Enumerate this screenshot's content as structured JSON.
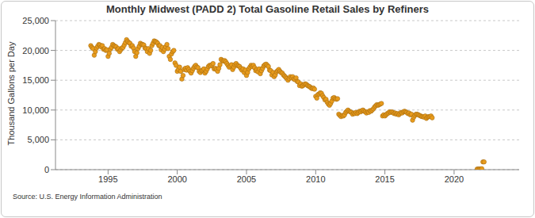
{
  "chart_data": {
    "type": "scatter",
    "title": "Monthly Midwest (PADD 2) Total Gasoline Retail Sales by Refiners",
    "y_label": "Thousand Gallons per Day",
    "source": "Source: U.S. Energy Information Administration",
    "color": "#e89b1c",
    "marker": "circle",
    "grid": true,
    "xlim": [
      1991.2,
      2024.7
    ],
    "xticks": [
      1995,
      2000,
      2005,
      2010,
      2015,
      2020
    ],
    "ylim": [
      0,
      25000
    ],
    "yticks": [
      0,
      {
        "value": 5000,
        "label": "5,000"
      },
      {
        "value": 10000,
        "label": "10,000"
      },
      {
        "value": 15000,
        "label": "15,000"
      },
      {
        "value": 20000,
        "label": "20,000"
      },
      {
        "value": 25000,
        "label": "25,000"
      }
    ],
    "x": [
      1993.75,
      1993.833,
      1993.917,
      1994,
      1994.083,
      1994.167,
      1994.25,
      1994.333,
      1994.417,
      1994.5,
      1994.583,
      1994.667,
      1994.75,
      1994.833,
      1994.917,
      1995,
      1995.083,
      1995.167,
      1995.25,
      1995.333,
      1995.417,
      1995.5,
      1995.583,
      1995.667,
      1995.75,
      1995.833,
      1995.917,
      1996,
      1996.083,
      1996.167,
      1996.25,
      1996.333,
      1996.417,
      1996.5,
      1996.583,
      1996.667,
      1996.75,
      1996.833,
      1996.917,
      1997,
      1997.083,
      1997.167,
      1997.25,
      1997.333,
      1997.417,
      1997.5,
      1997.583,
      1997.667,
      1997.75,
      1997.833,
      1997.917,
      1998,
      1998.083,
      1998.167,
      1998.25,
      1998.333,
      1998.417,
      1998.5,
      1998.583,
      1998.667,
      1998.75,
      1998.833,
      1998.917,
      1999,
      1999.083,
      1999.167,
      1999.25,
      1999.333,
      1999.417,
      1999.5,
      1999.583,
      1999.667,
      1999.75,
      1999.833,
      1999.917,
      2000,
      2000.083,
      2000.167,
      2000.25,
      2000.333,
      2000.417,
      2000.5,
      2000.583,
      2000.667,
      2000.75,
      2000.833,
      2000.917,
      2001,
      2001.083,
      2001.167,
      2001.25,
      2001.333,
      2001.417,
      2001.5,
      2001.583,
      2001.667,
      2001.75,
      2001.833,
      2001.917,
      2002,
      2002.083,
      2002.167,
      2002.25,
      2002.333,
      2002.417,
      2002.5,
      2002.583,
      2002.667,
      2002.75,
      2002.833,
      2002.917,
      2003,
      2003.083,
      2003.167,
      2003.25,
      2003.333,
      2003.417,
      2003.5,
      2003.583,
      2003.667,
      2003.75,
      2003.833,
      2003.917,
      2004,
      2004.083,
      2004.167,
      2004.25,
      2004.333,
      2004.417,
      2004.5,
      2004.583,
      2004.667,
      2004.75,
      2004.833,
      2004.917,
      2005,
      2005.083,
      2005.167,
      2005.25,
      2005.333,
      2005.417,
      2005.5,
      2005.583,
      2005.667,
      2005.75,
      2005.833,
      2005.917,
      2006,
      2006.083,
      2006.167,
      2006.25,
      2006.333,
      2006.417,
      2006.5,
      2006.583,
      2006.667,
      2006.75,
      2006.833,
      2006.917,
      2007,
      2007.083,
      2007.167,
      2007.25,
      2007.333,
      2007.417,
      2007.5,
      2007.583,
      2007.667,
      2007.75,
      2007.833,
      2007.917,
      2008,
      2008.083,
      2008.167,
      2008.25,
      2008.333,
      2008.417,
      2008.5,
      2008.583,
      2008.667,
      2008.75,
      2008.833,
      2008.917,
      2009,
      2009.083,
      2009.167,
      2009.25,
      2009.333,
      2009.417,
      2009.5,
      2009.583,
      2009.667,
      2009.75,
      2009.833,
      2009.917,
      2010,
      2010.083,
      2010.167,
      2010.25,
      2010.333,
      2010.417,
      2010.5,
      2010.583,
      2010.667,
      2010.75,
      2010.833,
      2010.917,
      2011,
      2011.083,
      2011.167,
      2011.25,
      2011.333,
      2011.417,
      2011.5,
      2011.583,
      2011.667,
      2011.75,
      2011.833,
      2011.917,
      2012,
      2012.083,
      2012.167,
      2012.25,
      2012.333,
      2012.417,
      2012.5,
      2012.583,
      2012.667,
      2012.75,
      2012.833,
      2012.917,
      2013,
      2013.083,
      2013.167,
      2013.25,
      2013.333,
      2013.417,
      2013.5,
      2013.583,
      2013.667,
      2013.75,
      2013.833,
      2013.917,
      2014,
      2014.083,
      2014.167,
      2014.25,
      2014.333,
      2014.417,
      2014.5,
      2014.583,
      2014.667,
      2014.75,
      2014.833,
      2014.917,
      2015,
      2015.083,
      2015.167,
      2015.25,
      2015.333,
      2015.417,
      2015.5,
      2015.583,
      2015.667,
      2015.75,
      2015.833,
      2015.917,
      2016,
      2016.083,
      2016.167,
      2016.25,
      2016.333,
      2016.417,
      2016.5,
      2016.583,
      2016.667,
      2016.75,
      2016.833,
      2016.917,
      2017,
      2017.083,
      2017.167,
      2017.25,
      2017.333,
      2017.417,
      2017.5,
      2017.583,
      2017.667,
      2017.75,
      2017.833,
      2017.917,
      2018,
      2018.083,
      2018.167,
      2018.25,
      2018.333,
      2018.417,
      2021.667,
      2021.75,
      2021.833,
      2021.917,
      2022,
      2022.083,
      2022.167
    ],
    "values": [
      20800,
      20500,
      20300,
      19200,
      19800,
      20400,
      20700,
      21000,
      20900,
      20600,
      20800,
      20200,
      20300,
      20000,
      20100,
      19000,
      19500,
      20200,
      20500,
      21000,
      20800,
      20700,
      20600,
      20200,
      20300,
      19800,
      20100,
      20400,
      20500,
      20900,
      21300,
      21800,
      21500,
      21300,
      21200,
      20700,
      20800,
      20400,
      19800,
      19000,
      19600,
      20300,
      20700,
      21200,
      21000,
      21000,
      20900,
      20400,
      20300,
      19800,
      20300,
      19500,
      20000,
      20800,
      21200,
      21600,
      21500,
      21400,
      21200,
      20800,
      20800,
      20100,
      20500,
      19800,
      20200,
      20600,
      21000,
      20300,
      19000,
      18500,
      19400,
      19800,
      20000,
      17900,
      17500,
      16500,
      16800,
      17200,
      16500,
      15200,
      15800,
      16800,
      17000,
      16700,
      17100,
      16800,
      16500,
      16200,
      16600,
      17000,
      17300,
      17500,
      17200,
      17100,
      16500,
      16300,
      16600,
      16700,
      16900,
      16200,
      16500,
      16900,
      17300,
      17500,
      17400,
      17600,
      17800,
      16900,
      17000,
      16800,
      16500,
      17000,
      17600,
      18500,
      18300,
      18200,
      18300,
      18100,
      17800,
      17500,
      17200,
      17400,
      17600,
      16800,
      17200,
      17600,
      17800,
      17500,
      17400,
      17300,
      17000,
      16700,
      16900,
      16300,
      16700,
      15800,
      16300,
      16900,
      17200,
      17500,
      17300,
      17500,
      17100,
      16600,
      16800,
      16400,
      16900,
      16100,
      16600,
      17000,
      17400,
      17600,
      17700,
      17500,
      17300,
      16700,
      16600,
      15900,
      16300,
      15600,
      15900,
      16400,
      16600,
      16800,
      16500,
      16300,
      16200,
      15900,
      15700,
      15500,
      15300,
      15000,
      15300,
      15600,
      15400,
      15600,
      15200,
      15100,
      15400,
      14800,
      14700,
      14100,
      14400,
      14000,
      14100,
      14300,
      14400,
      14300,
      14100,
      14000,
      13900,
      13700,
      13600,
      13700,
      13500,
      12300,
      12000,
      12600,
      12700,
      12900,
      12800,
      12400,
      12100,
      11700,
      11800,
      11300,
      11000,
      10800,
      11100,
      11500,
      12000,
      12100,
      11900,
      11800,
      11900,
      9300,
      9100,
      8900,
      9100,
      9000,
      9200,
      9600,
      9800,
      10000,
      9800,
      9700,
      9600,
      9300,
      9500,
      9400,
      9600,
      9400,
      9600,
      9800,
      9700,
      9900,
      10000,
      9800,
      9700,
      9500,
      9700,
      9600,
      9900,
      9800,
      10000,
      10200,
      10500,
      10700,
      10900,
      10800,
      10900,
      11000,
      11100,
      9000,
      9200,
      9000,
      9200,
      9400,
      9500,
      9700,
      9600,
      9700,
      9600,
      9400,
      9500,
      9300,
      9400,
      9200,
      9400,
      9600,
      9500,
      9700,
      9800,
      9700,
      9600,
      9400,
      9500,
      9200,
      9300,
      8300,
      8800,
      9100,
      9300,
      9300,
      9200,
      9100,
      9000,
      8900,
      8900,
      8800,
      9000,
      8600,
      8800,
      8900,
      8900,
      9000,
      8700,
      100,
      100,
      100,
      100,
      150,
      1300,
      1300
    ]
  }
}
